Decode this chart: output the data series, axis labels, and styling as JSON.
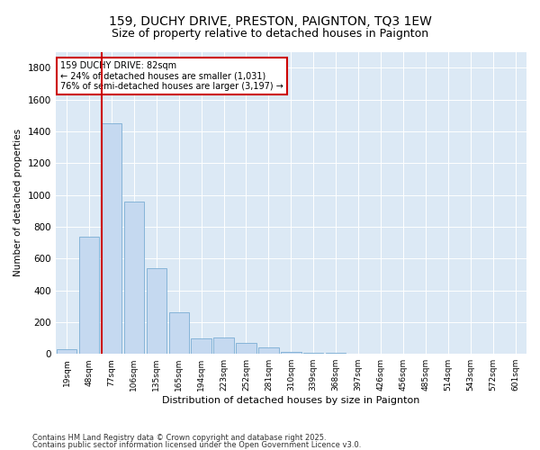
{
  "title": "159, DUCHY DRIVE, PRESTON, PAIGNTON, TQ3 1EW",
  "subtitle": "Size of property relative to detached houses in Paignton",
  "xlabel": "Distribution of detached houses by size in Paignton",
  "ylabel": "Number of detached properties",
  "categories": [
    "19sqm",
    "48sqm",
    "77sqm",
    "106sqm",
    "135sqm",
    "165sqm",
    "194sqm",
    "223sqm",
    "252sqm",
    "281sqm",
    "310sqm",
    "339sqm",
    "368sqm",
    "397sqm",
    "426sqm",
    "456sqm",
    "485sqm",
    "514sqm",
    "543sqm",
    "572sqm",
    "601sqm"
  ],
  "values": [
    30,
    735,
    1450,
    960,
    540,
    260,
    100,
    105,
    70,
    40,
    15,
    8,
    5,
    3,
    2,
    2,
    2,
    2,
    2,
    2,
    2
  ],
  "bar_color": "#c5d9f0",
  "bar_edge_color": "#7aadd4",
  "vline_x_index": 2,
  "vline_color": "#cc0000",
  "annotation_text": "159 DUCHY DRIVE: 82sqm\n← 24% of detached houses are smaller (1,031)\n76% of semi-detached houses are larger (3,197) →",
  "annotation_box_color": "#cc0000",
  "ylim": [
    0,
    1900
  ],
  "yticks": [
    0,
    200,
    400,
    600,
    800,
    1000,
    1200,
    1400,
    1600,
    1800
  ],
  "footer_line1": "Contains HM Land Registry data © Crown copyright and database right 2025.",
  "footer_line2": "Contains public sector information licensed under the Open Government Licence v3.0.",
  "plot_background": "#dce9f5",
  "title_fontsize": 10,
  "subtitle_fontsize": 9
}
